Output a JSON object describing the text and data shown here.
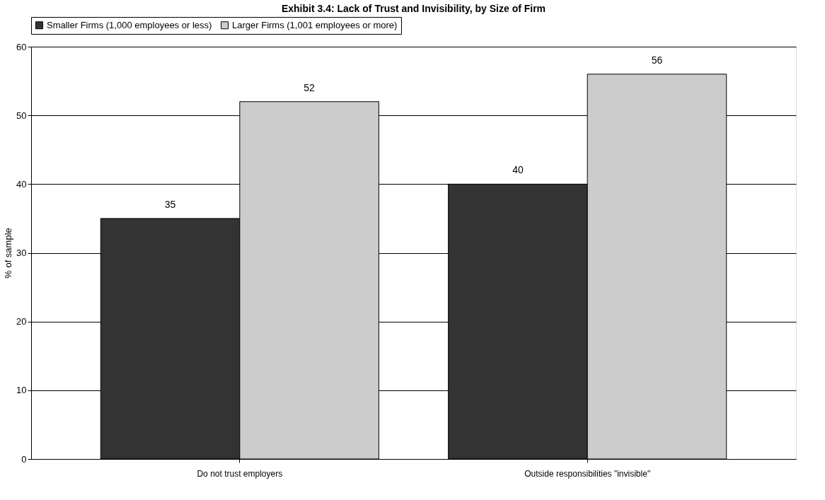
{
  "chart_data": {
    "type": "bar",
    "title": "Exhibit 3.4: Lack of Trust and Invisibility, by Size of Firm",
    "ylabel": "% of sample",
    "categories": [
      "Do not trust employers",
      "Outside responsibilities \"invisible\""
    ],
    "series": [
      {
        "name": "Smaller Firms (1,000 employees or less)",
        "color": "#333333",
        "values": [
          35,
          40
        ]
      },
      {
        "name": "Larger Firms (1,001 employees or more)",
        "color": "#cccccc",
        "values": [
          52,
          56
        ]
      }
    ],
    "ylim": [
      0,
      60
    ],
    "yticks": [
      0,
      10,
      20,
      30,
      40,
      50,
      60
    ],
    "grid": "y",
    "legend": "top",
    "data_labels": true
  }
}
